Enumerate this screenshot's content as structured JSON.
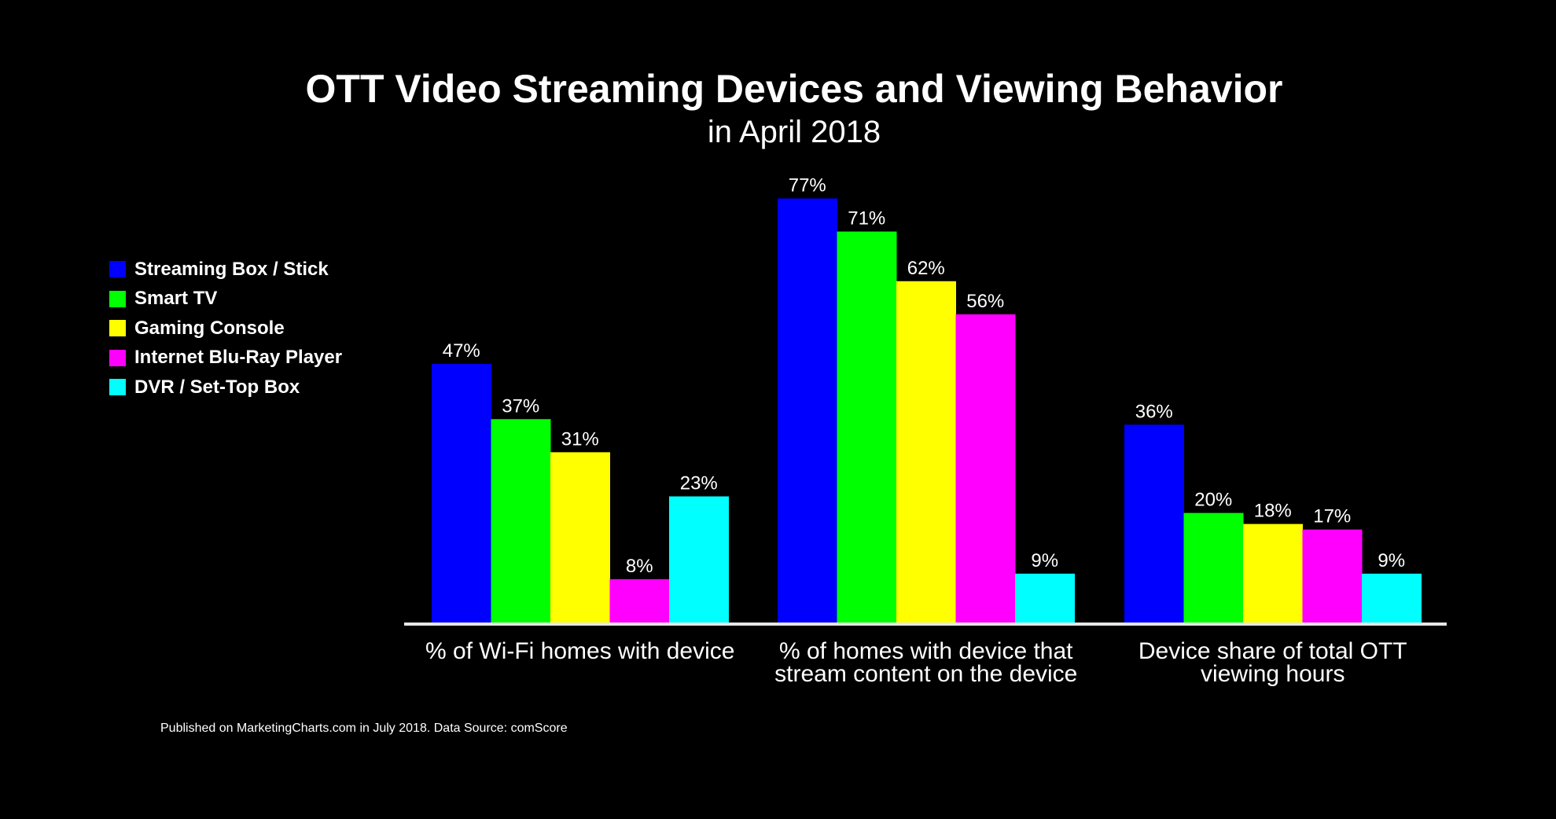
{
  "chart_data": {
    "type": "bar",
    "title": "OTT Video Streaming Devices and Viewing Behavior",
    "subtitle": "in April 2018",
    "xlabel": "",
    "ylabel": "",
    "ylim": [
      0,
      80
    ],
    "grid": false,
    "legend_position": "left",
    "categories": [
      [
        "% of Wi-Fi homes with device"
      ],
      [
        "% of homes with device that",
        "stream content on the device"
      ],
      [
        "Device share of total OTT",
        "viewing hours"
      ]
    ],
    "series": [
      {
        "name": "Streaming Box / Stick",
        "color": "#0000ff",
        "values": [
          47,
          77,
          36
        ]
      },
      {
        "name": "Smart TV",
        "color": "#00ff00",
        "values": [
          37,
          71,
          20
        ]
      },
      {
        "name": "Gaming Console",
        "color": "#ffff00",
        "values": [
          31,
          62,
          18
        ]
      },
      {
        "name": "Internet Blu-Ray Player",
        "color": "#ff00ff",
        "values": [
          8,
          56,
          17
        ]
      },
      {
        "name": "DVR / Set-Top Box",
        "color": "#00ffff",
        "values": [
          23,
          9,
          9
        ]
      }
    ],
    "value_suffix": "%",
    "footer": "Published on MarketingCharts.com in July 2018. Data Source: comScore"
  }
}
